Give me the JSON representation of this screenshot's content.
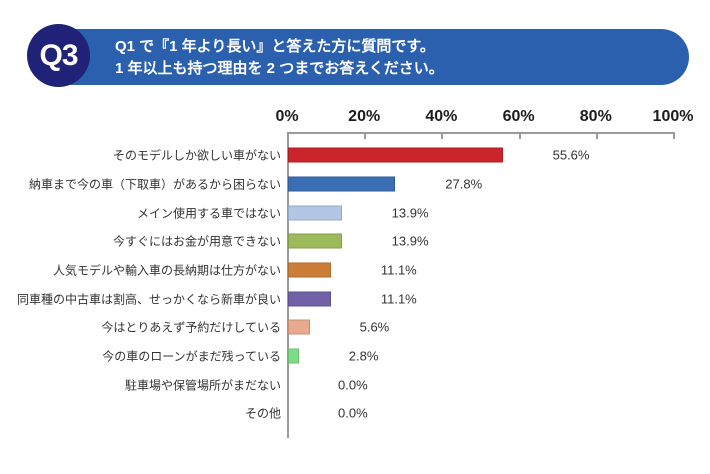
{
  "header": {
    "badge": "Q3",
    "line1": "Q1 で『1 年より長い』と答えた方に質問です。",
    "line2": "1 年以上も持つ理由を 2 つまでお答えください。"
  },
  "colors": {
    "header_bg": "#2b60af",
    "badge_bg": "#1f2277",
    "header_text": "#ffffff",
    "axis": "#9a9a9a",
    "label_text": "#333333"
  },
  "chart_data": {
    "type": "bar",
    "orientation": "horizontal",
    "title": "",
    "xlabel": "",
    "ylabel": "",
    "xlim": [
      0,
      100
    ],
    "x_ticks": [
      "0%",
      "20%",
      "40%",
      "60%",
      "80%",
      "100%"
    ],
    "grid": false,
    "legend": false,
    "categories": [
      "そのモデルしか欲しい車がない",
      "納車まで今の車（下取車）があるから困らない",
      "メイン使用する車ではない",
      "今すぐにはお金が用意できない",
      "人気モデルや輸入車の長納期は仕方がない",
      "同車種の中古車は割高、せっかくなら新車が良い",
      "今はとりあえず予約だけしている",
      "今の車のローンがまだ残っている",
      "駐車場や保管場所がまだない",
      "その他"
    ],
    "values": [
      55.6,
      27.8,
      13.9,
      13.9,
      11.1,
      11.1,
      5.6,
      2.8,
      0.0,
      0.0
    ],
    "value_labels": [
      "55.6%",
      "27.8%",
      "13.9%",
      "13.9%",
      "11.1%",
      "11.1%",
      "5.6%",
      "2.8%",
      "0.0%",
      "0.0%"
    ],
    "bar_colors": [
      "#c9252b",
      "#3a6eb5",
      "#b2c6e6",
      "#9cba5c",
      "#cc7e38",
      "#7161a6",
      "#e9a98d",
      "#7edc87",
      null,
      null
    ]
  }
}
